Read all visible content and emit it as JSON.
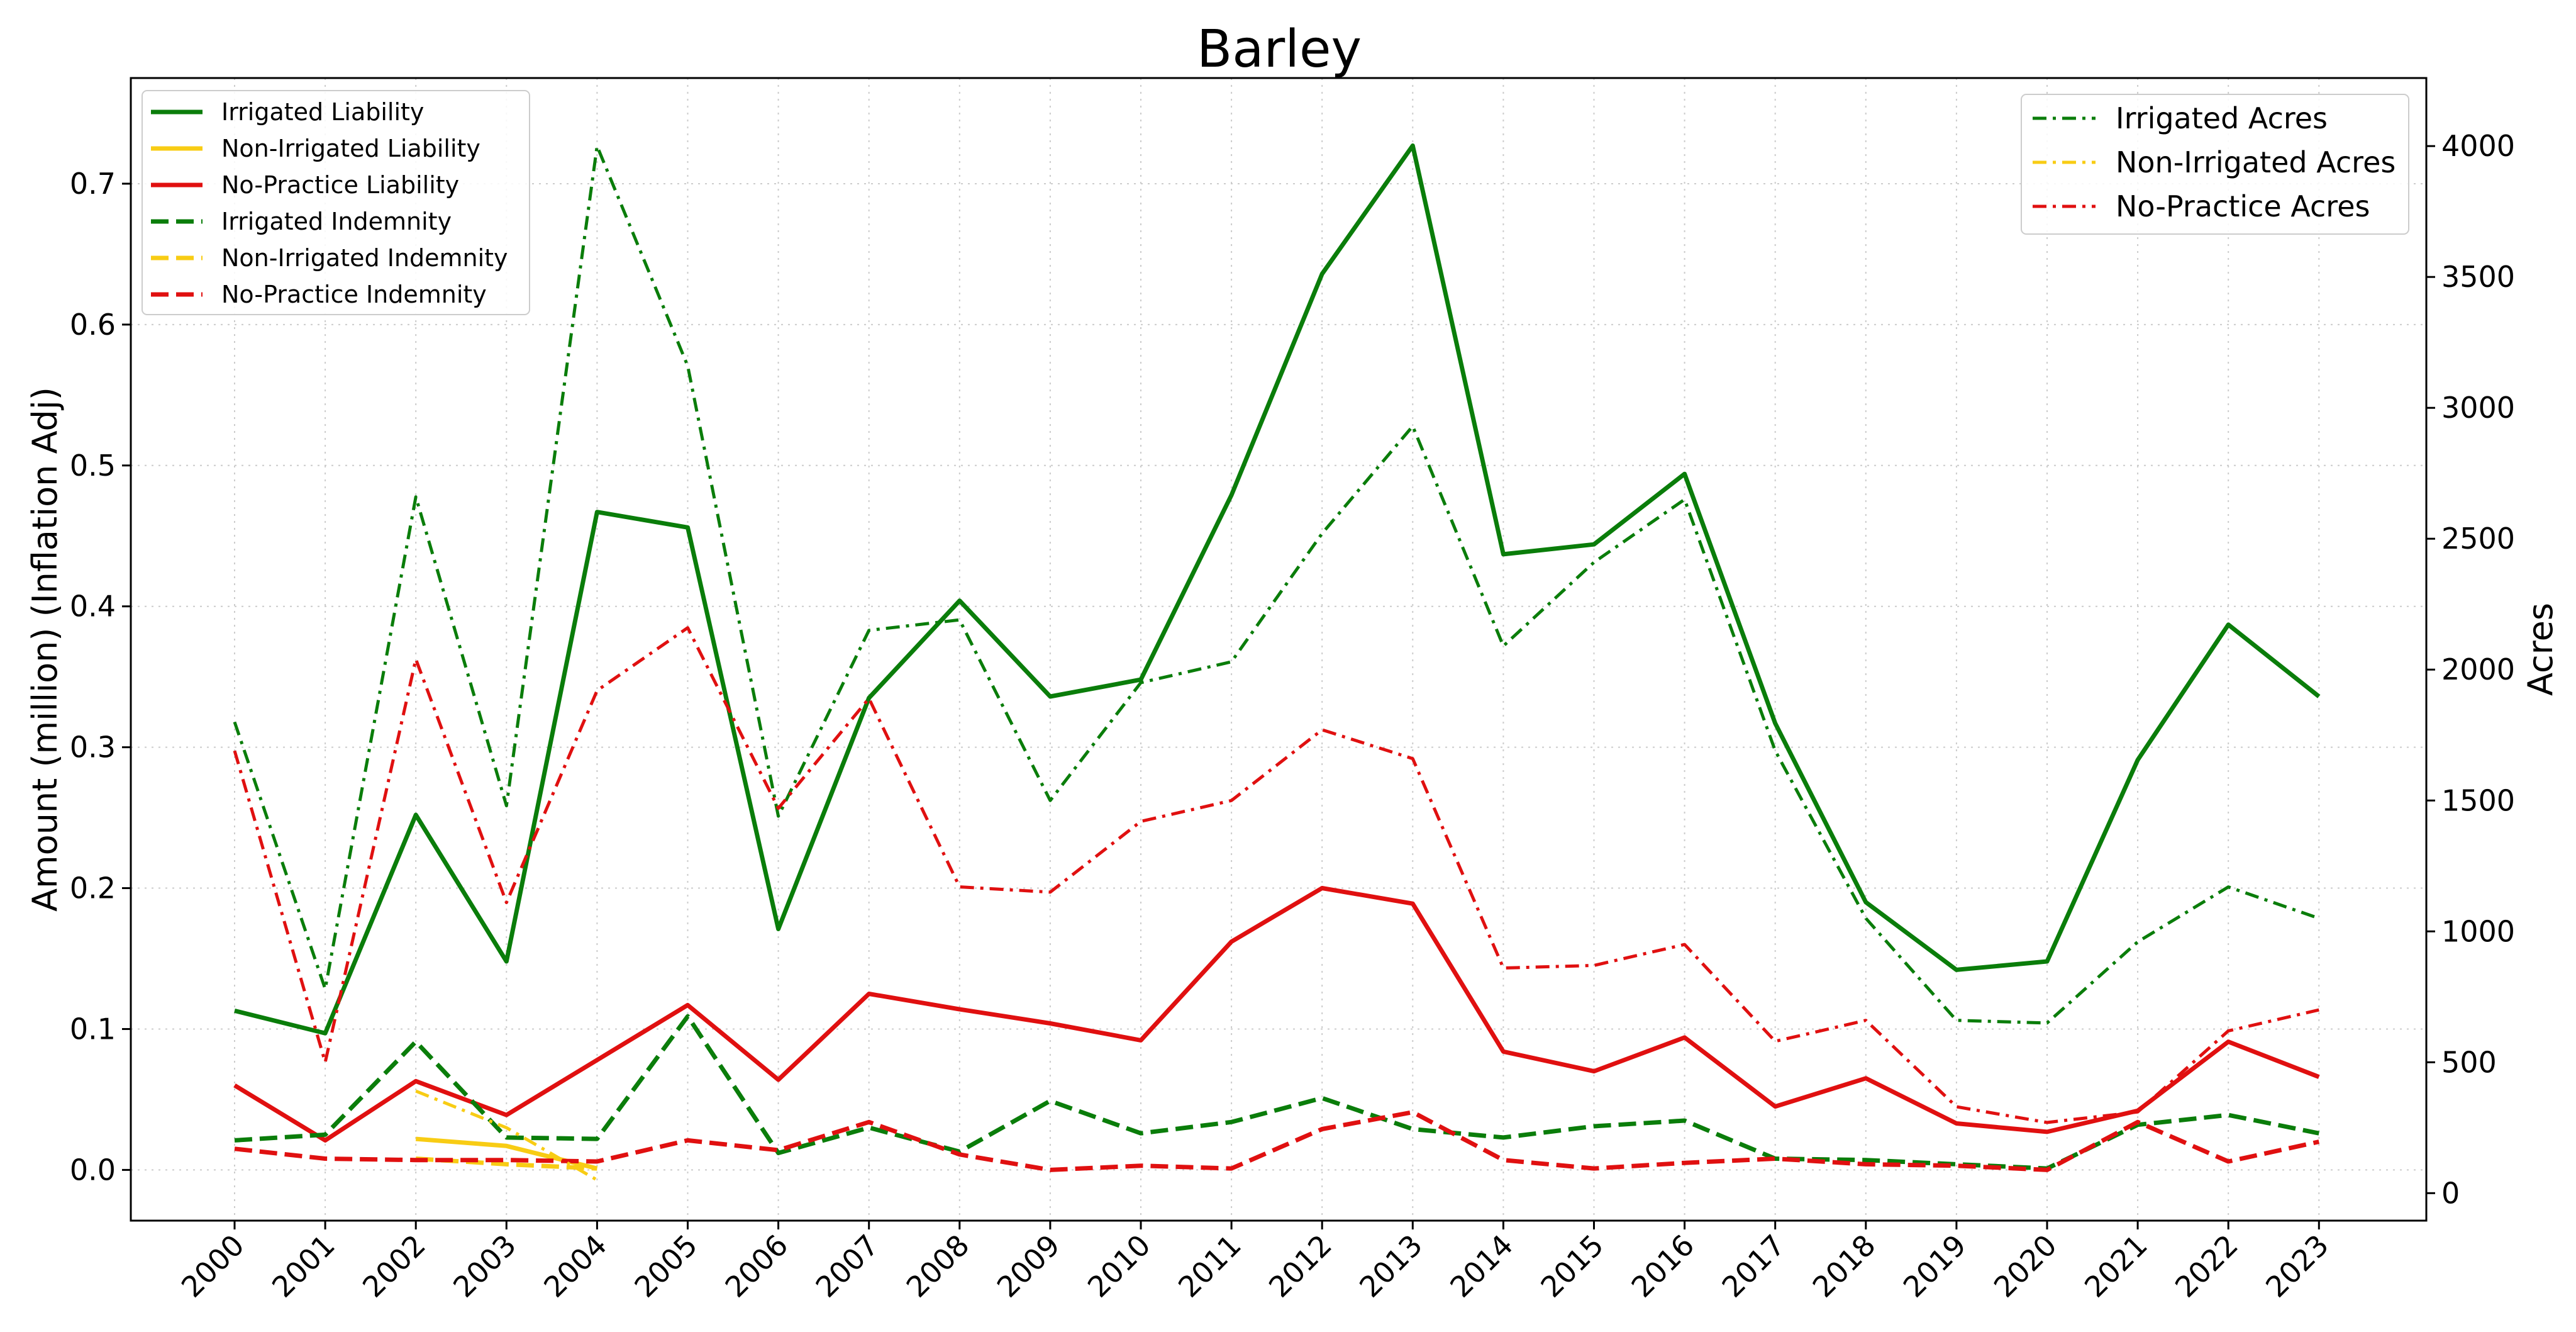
{
  "chart_data": {
    "type": "line",
    "title": "Barley",
    "ylabel": "Amount (million) (Inflation Adj)",
    "y2label": "Acres",
    "xlabel": "",
    "grid": true,
    "x": [
      "2000",
      "2001",
      "2002",
      "2003",
      "2004",
      "2005",
      "2006",
      "2007",
      "2008",
      "2009",
      "2010",
      "2011",
      "2012",
      "2013",
      "2014",
      "2015",
      "2016",
      "2017",
      "2018",
      "2019",
      "2020",
      "2021",
      "2022",
      "2023"
    ],
    "ylim": [
      -0.036,
      0.775
    ],
    "y2lim": [
      -105,
      4260
    ],
    "yticks": [
      "0.0",
      "0.1",
      "0.2",
      "0.3",
      "0.4",
      "0.5",
      "0.6",
      "0.7"
    ],
    "y2ticks": [
      "0",
      "500",
      "1000",
      "1500",
      "2000",
      "2500",
      "3000",
      "3500",
      "4000"
    ],
    "legend_left_placement": "upper-left",
    "legend_right_placement": "upper-right",
    "colors": {
      "green": "#0a7d0a",
      "yellow": "#f8cc14",
      "red": "#e01010",
      "grid": "#cccccc"
    },
    "series": [
      {
        "name": "Irrigated Liability",
        "axis": "left",
        "style": "solid",
        "color": "#0a7d0a",
        "values": [
          0.113,
          0.097,
          0.252,
          0.148,
          0.467,
          0.456,
          0.171,
          0.335,
          0.404,
          0.336,
          0.348,
          0.479,
          0.636,
          0.727,
          0.437,
          0.444,
          0.494,
          0.317,
          0.19,
          0.142,
          0.148,
          0.291,
          0.387,
          0.336
        ]
      },
      {
        "name": "Non-Irrigated Liability",
        "axis": "left",
        "style": "solid",
        "color": "#f8cc14",
        "values": [
          null,
          null,
          0.022,
          0.017,
          0.001,
          null,
          null,
          null,
          null,
          null,
          null,
          null,
          null,
          null,
          null,
          null,
          null,
          null,
          null,
          null,
          null,
          null,
          null,
          null
        ]
      },
      {
        "name": "No-Practice Liability",
        "axis": "left",
        "style": "solid",
        "color": "#e01010",
        "values": [
          0.06,
          0.021,
          0.063,
          0.039,
          0.078,
          0.117,
          0.064,
          0.125,
          0.114,
          0.104,
          0.092,
          0.162,
          0.2,
          0.189,
          0.084,
          0.07,
          0.094,
          0.045,
          0.065,
          0.033,
          0.027,
          0.042,
          0.091,
          0.066
        ]
      },
      {
        "name": "Irrigated Indemnity",
        "axis": "left",
        "style": "dashed",
        "color": "#0a7d0a",
        "values": [
          0.021,
          0.025,
          0.091,
          0.023,
          0.022,
          0.109,
          0.012,
          0.03,
          0.013,
          0.049,
          0.026,
          0.034,
          0.051,
          0.029,
          0.023,
          0.031,
          0.035,
          0.008,
          0.007,
          0.004,
          0.001,
          0.032,
          0.039,
          0.026
        ]
      },
      {
        "name": "Non-Irrigated Indemnity",
        "axis": "left",
        "style": "dashed",
        "color": "#f8cc14",
        "values": [
          null,
          null,
          0.008,
          0.004,
          0.001,
          null,
          null,
          null,
          null,
          null,
          null,
          null,
          null,
          null,
          null,
          null,
          null,
          null,
          null,
          null,
          null,
          null,
          null,
          null
        ]
      },
      {
        "name": "No-Practice Indemnity",
        "axis": "left",
        "style": "dashed",
        "color": "#e01010",
        "values": [
          0.015,
          0.008,
          0.007,
          0.007,
          0.006,
          0.021,
          0.014,
          0.034,
          0.011,
          0.0,
          0.003,
          0.001,
          0.029,
          0.041,
          0.007,
          0.001,
          0.005,
          0.008,
          0.004,
          0.003,
          0.0,
          0.034,
          0.006,
          0.02
        ]
      },
      {
        "name": "Irrigated Acres",
        "axis": "right",
        "style": "dashdot",
        "color": "#0a7d0a",
        "values": [
          1800,
          780,
          2660,
          1480,
          4000,
          3160,
          1440,
          2150,
          2190,
          1500,
          1950,
          2030,
          2520,
          2930,
          2090,
          2410,
          2650,
          1690,
          1050,
          660,
          650,
          960,
          1170,
          1050
        ]
      },
      {
        "name": "Non-Irrigated Acres",
        "axis": "right",
        "style": "dashdot",
        "color": "#f8cc14",
        "values": [
          null,
          null,
          390,
          250,
          50,
          null,
          null,
          null,
          null,
          null,
          null,
          null,
          null,
          null,
          null,
          null,
          null,
          null,
          null,
          null,
          null,
          null,
          null,
          null
        ]
      },
      {
        "name": "No-Practice Acres",
        "axis": "right",
        "style": "dashdot",
        "color": "#e01010",
        "values": [
          1690,
          500,
          2040,
          1110,
          1920,
          2160,
          1470,
          1890,
          1170,
          1150,
          1420,
          1500,
          1770,
          1660,
          860,
          870,
          950,
          580,
          660,
          330,
          270,
          310,
          620,
          700
        ]
      }
    ]
  },
  "legend_left": [
    "Irrigated Liability",
    "Non-Irrigated Liability",
    "No-Practice Liability",
    "Irrigated Indemnity",
    "Non-Irrigated Indemnity",
    "No-Practice Indemnity"
  ],
  "legend_right": [
    "Irrigated Acres",
    "Non-Irrigated Acres",
    "No-Practice Acres"
  ]
}
